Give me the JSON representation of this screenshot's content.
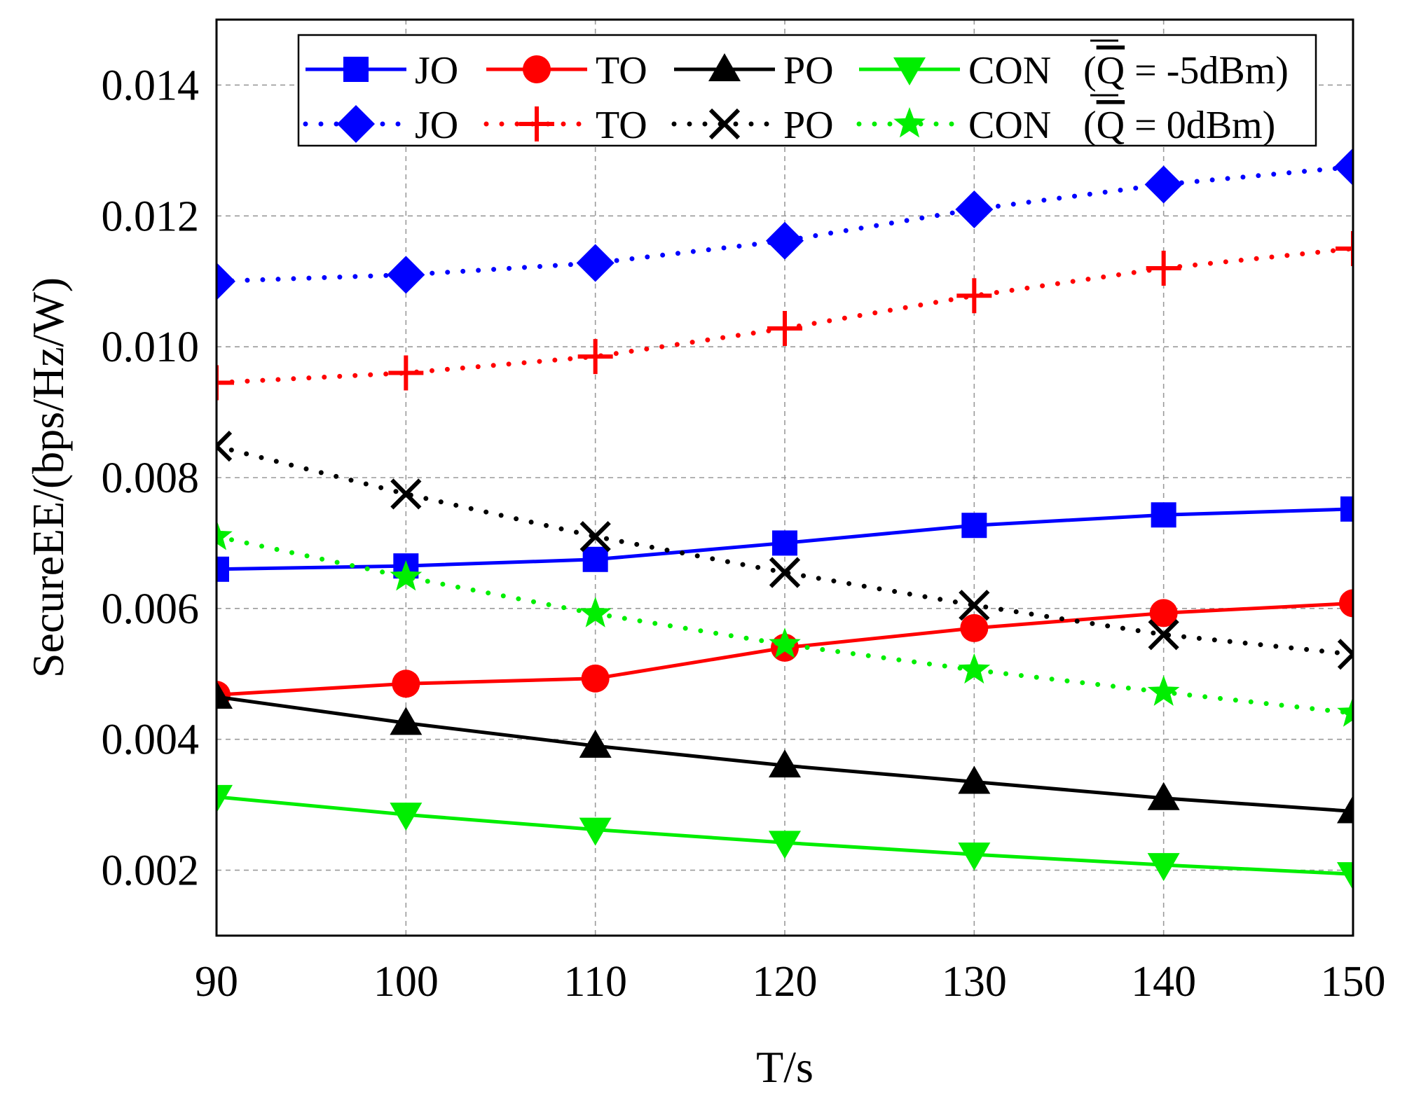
{
  "chart_data": {
    "type": "line",
    "title": "",
    "xlabel": "T/s",
    "ylabel": "SecureEE/(bps/Hz/W)",
    "x": [
      90,
      100,
      110,
      120,
      130,
      140,
      150
    ],
    "xlim": [
      90,
      150
    ],
    "ylim": [
      0.001,
      0.015
    ],
    "xticks": [
      "90",
      "100",
      "110",
      "120",
      "130",
      "140",
      "150"
    ],
    "yticks": [
      {
        "value": 0.002,
        "label": "0.002"
      },
      {
        "value": 0.004,
        "label": "0.004"
      },
      {
        "value": 0.006,
        "label": "0.006"
      },
      {
        "value": 0.008,
        "label": "0.008"
      },
      {
        "value": 0.01,
        "label": "0.010"
      },
      {
        "value": 0.012,
        "label": "0.012"
      },
      {
        "value": 0.014,
        "label": "0.014"
      }
    ],
    "grid": true,
    "legend_position": "top",
    "legend_rows": [
      {
        "condition_prefix": "(",
        "condition_symbol": "Q",
        "condition_suffix": " = -5dBm)"
      },
      {
        "condition_prefix": "(",
        "condition_symbol": "Q",
        "condition_suffix": " = 0dBm)"
      }
    ],
    "series": [
      {
        "name": "JO",
        "row": 0,
        "color": "#0000ff",
        "style": "solid",
        "marker": "square",
        "values": [
          0.0066,
          0.00665,
          0.00675,
          0.007,
          0.00727,
          0.00743,
          0.00752
        ]
      },
      {
        "name": "TO",
        "row": 0,
        "color": "#ff0000",
        "style": "solid",
        "marker": "circle",
        "values": [
          0.00468,
          0.00485,
          0.00493,
          0.0054,
          0.0057,
          0.00593,
          0.00608
        ]
      },
      {
        "name": "PO",
        "row": 0,
        "color": "#000000",
        "style": "solid",
        "marker": "triangle-up",
        "values": [
          0.00465,
          0.00425,
          0.0039,
          0.0036,
          0.00335,
          0.0031,
          0.0029
        ]
      },
      {
        "name": "CON",
        "row": 0,
        "color": "#00ee00",
        "style": "solid",
        "marker": "triangle-down",
        "values": [
          0.00312,
          0.00285,
          0.00262,
          0.00242,
          0.00224,
          0.00208,
          0.00194
        ]
      },
      {
        "name": "JO",
        "row": 1,
        "color": "#0000ff",
        "style": "dotted",
        "marker": "diamond",
        "values": [
          0.011,
          0.0111,
          0.01128,
          0.01162,
          0.0121,
          0.01248,
          0.01275
        ]
      },
      {
        "name": "TO",
        "row": 1,
        "color": "#ff0000",
        "style": "dotted",
        "marker": "plus",
        "values": [
          0.00945,
          0.0096,
          0.00985,
          0.01028,
          0.01078,
          0.0112,
          0.0115
        ]
      },
      {
        "name": "PO",
        "row": 1,
        "color": "#000000",
        "style": "dotted",
        "marker": "cross",
        "values": [
          0.00848,
          0.00775,
          0.0071,
          0.00655,
          0.00605,
          0.0056,
          0.0053
        ]
      },
      {
        "name": "CON",
        "row": 1,
        "color": "#00ee00",
        "style": "dotted",
        "marker": "star",
        "values": [
          0.0071,
          0.00648,
          0.00592,
          0.00545,
          0.00506,
          0.00472,
          0.0044
        ]
      }
    ]
  }
}
